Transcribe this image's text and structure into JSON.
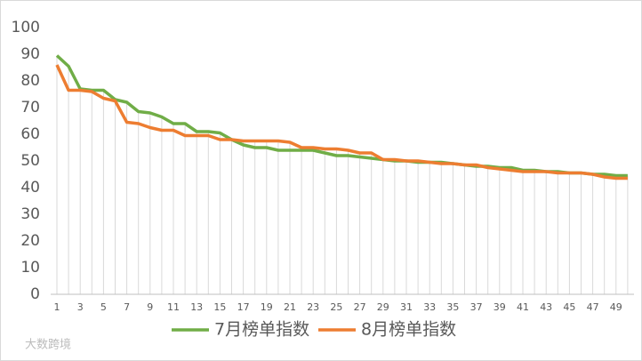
{
  "chart_data": {
    "type": "line",
    "categories": [
      "1",
      null,
      "3",
      null,
      "5",
      null,
      "7",
      null,
      "9",
      null,
      "11",
      null,
      "13",
      null,
      "15",
      null,
      "17",
      null,
      "19",
      null,
      "21",
      null,
      "23",
      null,
      "25",
      null,
      "27",
      null,
      "29",
      null,
      "31",
      null,
      "33",
      null,
      "35",
      null,
      "37",
      null,
      "39",
      null,
      "41",
      null,
      "43",
      null,
      "45",
      null,
      "47",
      null,
      "49",
      null
    ],
    "series": [
      {
        "name": "7月榜单指数",
        "color": "#70ad47",
        "values": [
          89.5,
          85.5,
          77,
          76.5,
          76.5,
          73,
          72,
          68.5,
          68,
          66.5,
          64,
          64,
          61,
          61,
          60.5,
          58,
          56,
          55,
          55,
          54,
          54,
          54,
          54,
          53,
          52,
          52,
          51.5,
          51,
          50.5,
          50,
          50,
          49.5,
          49.5,
          49.5,
          49,
          48.5,
          48,
          48,
          47.5,
          47.5,
          46.5,
          46.5,
          46,
          46,
          45.5,
          45.5,
          45,
          45,
          44.5,
          44.5
        ]
      },
      {
        "name": "8月榜单指数",
        "color": "#ed7d31",
        "values": [
          86,
          76.5,
          76.5,
          76,
          73.5,
          72.5,
          64.5,
          64,
          62.5,
          61.5,
          61.5,
          59.5,
          59.5,
          59.5,
          58,
          58,
          57.5,
          57.5,
          57.5,
          57.5,
          57,
          55,
          55,
          54.5,
          54.5,
          54,
          53,
          53,
          50.5,
          50.5,
          50,
          50,
          49.5,
          49,
          49,
          48.5,
          48.5,
          47.5,
          47,
          46.5,
          46,
          46,
          46,
          45.5,
          45.5,
          45.5,
          45,
          44,
          43.5,
          43.5
        ]
      }
    ],
    "ylim": [
      0,
      100
    ],
    "yticks": [
      0,
      10,
      20,
      30,
      40,
      50,
      60,
      70,
      80,
      90,
      100
    ],
    "drop_lines": true,
    "legend": "bottom"
  },
  "watermark": "大数跨境"
}
